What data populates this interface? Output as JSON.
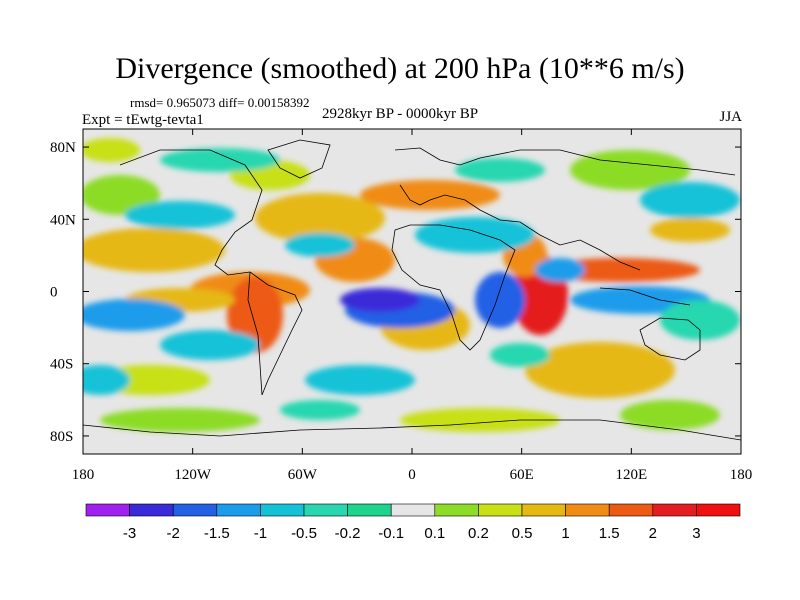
{
  "title": "Divergence (smoothed) at 200 hPa (10**6 m/s)",
  "stats_text": "rmsd= 0.965073 diff= 0.00158392",
  "experiment_label": "Expt = tEwtg-tevta1",
  "period_label": "2928kyr BP - 0000kyr BP",
  "season": "JJA",
  "map": {
    "lon_ticks": [
      "180",
      "120W",
      "60W",
      "0",
      "60E",
      "120E",
      "180"
    ],
    "lat_ticks": [
      "80N",
      "40N",
      "0",
      "40S",
      "80S"
    ],
    "background_color": "#e6e6e6"
  },
  "colorbar": {
    "labels": [
      "-3",
      "-2",
      "-1.5",
      "-1",
      "-0.5",
      "-0.2",
      "-0.1",
      "0.1",
      "0.2",
      "0.5",
      "1",
      "1.5",
      "2",
      "3"
    ],
    "colors": [
      "#a020f0",
      "#3a2ad8",
      "#2460e6",
      "#1c9cea",
      "#14c2d8",
      "#28d7b0",
      "#1ed48c",
      "#e6e6e6",
      "#8cdc28",
      "#c8e014",
      "#e6b814",
      "#f08c14",
      "#ec5a14",
      "#e41e1e",
      "#f01010"
    ]
  }
}
